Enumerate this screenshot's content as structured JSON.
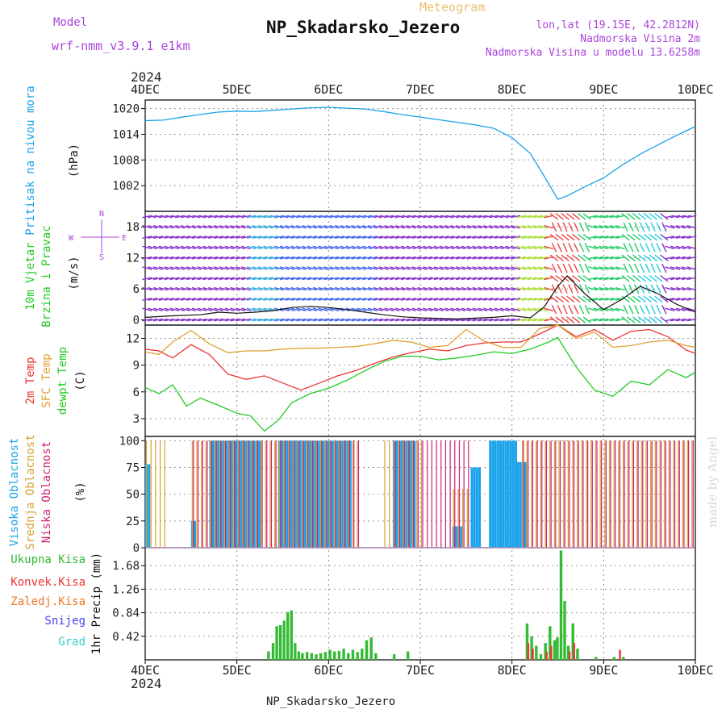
{
  "header": {
    "meteogram_label": "Meteogram",
    "station": "NP_Skadarsko_Jezero",
    "model_label": "Model",
    "model_name": "wrf-nmm_v3.9.1  e1km",
    "lonlat": "lon,lat (19.15E, 42.2812N)",
    "elevation": "Nadmorska Visina 2m",
    "model_elevation": "Nadmorska Visina u modelu 13.6258m",
    "year": "2024",
    "footer_station": "NP_Skadarsko_Jezero",
    "watermark": "made by Angel"
  },
  "colors": {
    "pressure": "#1aa3ea",
    "wind_label": "#22cc22",
    "temp_2m": "#ee3333",
    "temp_sfc": "#e0a030",
    "dewpoint": "#22cc22",
    "cloud_high": "#1aa3ea",
    "cloud_mid": "#d8a030",
    "cloud_low": "#cc2277",
    "precip_total": "#33bb33",
    "precip_conv": "#ee3333",
    "precip_frozen": "#ee7722",
    "snow": "#4444ee",
    "hail": "#33cccc",
    "wind_barbs": "#8833cc",
    "purple_text": "#aa44dd"
  },
  "chart_data": [
    {
      "type": "line",
      "panel": "pressure",
      "ylabel": "Pritisak na nivou mora",
      "unit": "(hPa)",
      "x_ticks": [
        "4DEC",
        "5DEC",
        "6DEC",
        "7DEC",
        "8DEC",
        "9DEC",
        "10DEC"
      ],
      "xlim_days": [
        4,
        10
      ],
      "ylim": [
        996,
        1022
      ],
      "yticks": [
        1002,
        1008,
        1014,
        1020
      ],
      "series": [
        {
          "x": [
            4,
            4.2,
            4.4,
            4.6,
            4.8,
            5.0,
            5.2,
            5.4,
            5.6,
            5.8,
            6.0,
            6.2,
            6.4,
            6.6,
            6.8,
            7.0,
            7.2,
            7.4,
            7.6,
            7.8,
            8.0,
            8.2,
            8.3,
            8.4,
            8.5,
            8.6,
            8.8,
            9.0,
            9.2,
            9.4,
            9.6,
            9.8,
            10.0
          ],
          "y": [
            1017.2,
            1017.3,
            1018.0,
            1018.6,
            1019.2,
            1019.4,
            1019.3,
            1019.6,
            1019.9,
            1020.2,
            1020.3,
            1020.1,
            1019.9,
            1019.3,
            1018.6,
            1018.0,
            1017.4,
            1016.8,
            1016.2,
            1015.4,
            1013.2,
            1009.5,
            1006.0,
            1002.5,
            998.8,
            999.6,
            1001.8,
            1003.8,
            1006.8,
            1009.4,
            1011.6,
            1013.8,
            1015.8
          ]
        }
      ]
    },
    {
      "type": "line",
      "panel": "wind",
      "ylabel": "10m Vjetar",
      "ylabel2": "Brzina i Pravac",
      "unit": "(m/s)",
      "ylim": [
        -1,
        21
      ],
      "yticks": [
        0,
        6,
        12,
        18
      ],
      "compass": {
        "n": "N",
        "s": "S",
        "e": "E",
        "w": "W"
      },
      "series": [
        {
          "name": "speed",
          "x": [
            4,
            4.3,
            4.6,
            4.8,
            5.0,
            5.2,
            5.4,
            5.6,
            5.8,
            6.0,
            6.2,
            6.4,
            6.6,
            6.8,
            7.0,
            7.4,
            7.8,
            8.0,
            8.2,
            8.35,
            8.5,
            8.6,
            8.8,
            9.0,
            9.2,
            9.4,
            9.6,
            9.8,
            10.0
          ],
          "y": [
            0.5,
            0.8,
            1.0,
            1.5,
            1.3,
            1.5,
            1.8,
            2.4,
            2.6,
            2.4,
            2.0,
            1.5,
            1.0,
            0.6,
            0.4,
            0.2,
            0.5,
            0.8,
            0.4,
            2.5,
            6.5,
            8.5,
            5.0,
            2.0,
            4.0,
            6.5,
            5.0,
            3.0,
            1.5
          ]
        }
      ]
    },
    {
      "type": "line",
      "panel": "temperature",
      "labels": [
        "2m Temp",
        "SFC Temp",
        "dewpt Temp"
      ],
      "unit": "(C)",
      "ylim": [
        1,
        13.5
      ],
      "yticks": [
        3,
        6,
        9,
        12
      ],
      "series": [
        {
          "name": "2m Temp",
          "x": [
            4,
            4.15,
            4.3,
            4.5,
            4.7,
            4.9,
            5.1,
            5.3,
            5.5,
            5.7,
            5.9,
            6.1,
            6.3,
            6.5,
            6.7,
            6.9,
            7.1,
            7.3,
            7.5,
            7.7,
            7.9,
            8.1,
            8.3,
            8.5,
            8.7,
            8.9,
            9.1,
            9.3,
            9.5,
            9.7,
            9.9,
            10.0
          ],
          "y": [
            10.8,
            10.6,
            9.8,
            11.3,
            10.2,
            8.0,
            7.4,
            7.8,
            7.0,
            6.2,
            7.0,
            7.8,
            8.4,
            9.2,
            9.9,
            10.4,
            10.8,
            10.6,
            11.2,
            11.5,
            11.6,
            11.6,
            12.5,
            13.5,
            12.2,
            13.0,
            11.8,
            12.8,
            13.0,
            12.2,
            10.7,
            10.3
          ]
        },
        {
          "name": "SFC Temp",
          "x": [
            4,
            4.15,
            4.3,
            4.5,
            4.7,
            4.9,
            5.1,
            5.3,
            5.5,
            5.7,
            5.9,
            6.1,
            6.3,
            6.5,
            6.7,
            6.9,
            7.1,
            7.3,
            7.5,
            7.7,
            7.9,
            8.1,
            8.3,
            8.5,
            8.7,
            8.9,
            9.1,
            9.3,
            9.5,
            9.7,
            9.9,
            10.0
          ],
          "y": [
            10.5,
            10.2,
            11.6,
            12.9,
            11.4,
            10.4,
            10.6,
            10.6,
            10.8,
            10.9,
            10.9,
            11.0,
            11.1,
            11.4,
            11.8,
            11.6,
            11.0,
            11.2,
            13.0,
            11.7,
            11.0,
            11.0,
            13.1,
            13.5,
            12.0,
            12.7,
            11.0,
            11.2,
            11.6,
            11.8,
            11.2,
            11.0
          ]
        },
        {
          "name": "dewpt Temp",
          "x": [
            4,
            4.15,
            4.3,
            4.45,
            4.6,
            4.8,
            5.0,
            5.15,
            5.3,
            5.45,
            5.6,
            5.8,
            6.0,
            6.2,
            6.4,
            6.6,
            6.8,
            7.0,
            7.2,
            7.4,
            7.6,
            7.8,
            8.0,
            8.2,
            8.4,
            8.5,
            8.7,
            8.9,
            9.1,
            9.3,
            9.5,
            9.7,
            9.9,
            10.0
          ],
          "y": [
            6.5,
            5.8,
            6.8,
            4.4,
            5.3,
            4.5,
            3.6,
            3.3,
            1.6,
            2.8,
            4.8,
            5.8,
            6.4,
            7.3,
            8.4,
            9.4,
            10.0,
            10.0,
            9.6,
            9.8,
            10.1,
            10.5,
            10.3,
            10.8,
            11.6,
            12.1,
            8.8,
            6.2,
            5.5,
            7.2,
            6.8,
            8.5,
            7.6,
            8.2
          ]
        }
      ]
    },
    {
      "type": "bar",
      "panel": "clouds",
      "labels": [
        "Visoka Oblacnost",
        "Srednja Oblacnost",
        "Niska Oblacnost"
      ],
      "unit": "(%)",
      "ylim": [
        0,
        100
      ],
      "yticks": [
        0,
        25,
        50,
        75,
        100
      ],
      "series": [
        {
          "name": "Visoka Oblacnost",
          "intervals": [
            [
              4.0,
              4.05,
              78
            ],
            [
              4.5,
              4.55,
              25
            ],
            [
              4.7,
              5.25,
              100
            ],
            [
              5.45,
              6.0,
              100
            ],
            [
              6.0,
              6.25,
              100
            ],
            [
              6.7,
              6.95,
              100
            ],
            [
              7.35,
              7.45,
              20
            ],
            [
              7.55,
              7.65,
              75
            ],
            [
              7.75,
              8.05,
              100
            ],
            [
              8.05,
              8.15,
              80
            ]
          ]
        },
        {
          "name": "Srednja Oblacnost",
          "intervals": [
            [
              4.0,
              4.2,
              100
            ],
            [
              4.5,
              6.3,
              100
            ],
            [
              6.6,
              7.0,
              100
            ],
            [
              7.35,
              7.5,
              55
            ],
            [
              8.1,
              10.0,
              100
            ]
          ]
        },
        {
          "name": "Niska Oblacnost",
          "intervals": [
            [
              4.5,
              6.3,
              100
            ],
            [
              6.7,
              7.5,
              100
            ],
            [
              8.1,
              8.3,
              100
            ],
            [
              8.3,
              10.0,
              100
            ]
          ]
        }
      ]
    },
    {
      "type": "bar",
      "panel": "precipitation",
      "labels": [
        "Ukupna Kisa",
        "Konvek.Kisa",
        "Zaledj.Kisa",
        "Snijeg",
        "Grad"
      ],
      "ylabel": "1hr Precip (mm)",
      "ylim": [
        0,
        2.0
      ],
      "yticks": [
        0.42,
        0.84,
        1.26,
        1.68
      ],
      "series": [
        {
          "name": "Ukupna Kisa",
          "x": [
            5.33,
            5.38,
            5.42,
            5.46,
            5.5,
            5.54,
            5.58,
            5.62,
            5.66,
            5.7,
            5.75,
            5.8,
            5.85,
            5.9,
            5.95,
            6.0,
            6.05,
            6.1,
            6.15,
            6.2,
            6.25,
            6.3,
            6.35,
            6.4,
            6.45,
            6.5,
            6.7,
            6.85,
            8.15,
            8.2,
            8.25,
            8.3,
            8.35,
            8.4,
            8.45,
            8.48,
            8.52,
            8.56,
            8.6,
            8.65,
            8.7,
            8.9,
            9.1,
            9.2
          ],
          "y": [
            0.15,
            0.3,
            0.6,
            0.62,
            0.7,
            0.85,
            0.88,
            0.3,
            0.15,
            0.12,
            0.14,
            0.12,
            0.1,
            0.12,
            0.14,
            0.18,
            0.15,
            0.16,
            0.2,
            0.12,
            0.18,
            0.14,
            0.2,
            0.35,
            0.4,
            0.12,
            0.1,
            0.15,
            0.65,
            0.42,
            0.25,
            0.1,
            0.3,
            0.6,
            0.35,
            0.4,
            1.95,
            1.05,
            0.25,
            0.65,
            0.2,
            0.05,
            0.05,
            0.05
          ]
        },
        {
          "name": "Konvek.Kisa",
          "x": [
            8.15,
            8.2,
            8.35,
            8.4,
            8.6,
            8.65,
            9.15
          ],
          "y": [
            0.3,
            0.2,
            0.15,
            0.25,
            0.15,
            0.3,
            0.18
          ]
        }
      ]
    }
  ]
}
